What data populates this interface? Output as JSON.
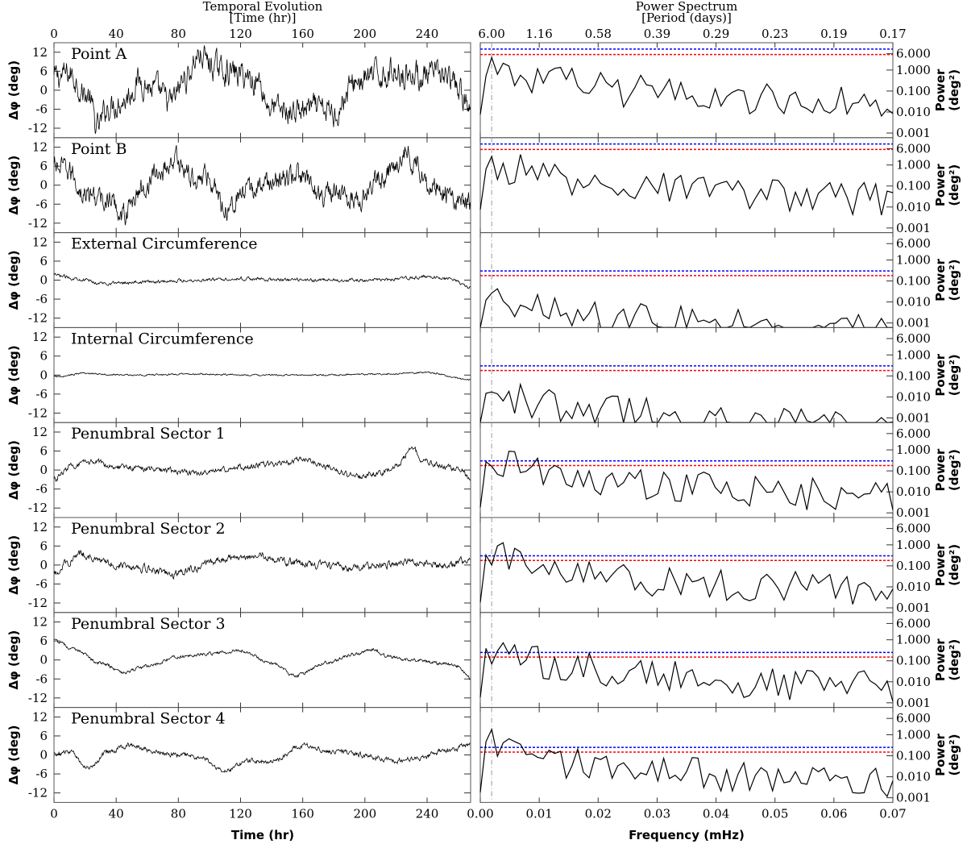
{
  "colors": {
    "blue_threshold": "#0000ff",
    "red_threshold": "#ff0000",
    "period_marker": "#999999"
  },
  "left": {
    "title": "Temporal Evolution",
    "subtitle": "[Time (hr)]",
    "xlabel": "Time (hr)",
    "ylabel": "Δφ (deg)",
    "xticks": [
      "0",
      "40",
      "80",
      "120",
      "160",
      "200",
      "240"
    ],
    "xtick_values": [
      0,
      40,
      80,
      120,
      160,
      200,
      240
    ],
    "xlim": [
      0,
      268
    ],
    "ylim": [
      -15,
      15
    ],
    "yticks": [
      "12",
      "6",
      "0",
      "-6",
      "-12"
    ],
    "ytick_values": [
      12,
      6,
      0,
      -6,
      -12
    ]
  },
  "right": {
    "title": "Power Spectrum",
    "subtitle": "[Period (days)]",
    "xlabel": "Frequency (mHz)",
    "ylabel_line1": "Power",
    "ylabel_line2": "(deg²)",
    "xticks": [
      "0.00",
      "0.01",
      "0.02",
      "0.03",
      "0.04",
      "0.05",
      "0.06",
      "0.07"
    ],
    "xtick_values": [
      0,
      0.01,
      0.02,
      0.03,
      0.04,
      0.05,
      0.06,
      0.07
    ],
    "top_ticks": [
      "6.00",
      "1.16",
      "0.58",
      "0.39",
      "0.29",
      "0.23",
      "0.19",
      "0.17"
    ],
    "top_tick_values": [
      0.00193,
      0.01,
      0.02,
      0.03,
      0.04,
      0.05,
      0.06,
      0.07
    ],
    "yticks": [
      "6.000",
      "1.000",
      "0.100",
      "0.010",
      "0.001"
    ],
    "ytick_values": [
      6,
      1,
      0.1,
      0.01,
      0.001
    ],
    "ylim": [
      0.0006,
      20
    ],
    "yscale": "log",
    "xlim": [
      0,
      0.07
    ],
    "period_marker_freq": 0.00193
  },
  "panels": [
    {
      "label": "Point A",
      "blue_level": 10.0,
      "red_level": 5.5,
      "amp": 6.5,
      "anchors": [
        [
          0,
          4
        ],
        [
          10,
          5
        ],
        [
          22,
          -2
        ],
        [
          28,
          -12
        ],
        [
          35,
          -5
        ],
        [
          45,
          -3
        ],
        [
          55,
          3
        ],
        [
          65,
          0
        ],
        [
          75,
          -4
        ],
        [
          85,
          4
        ],
        [
          93,
          11
        ],
        [
          105,
          7
        ],
        [
          120,
          5
        ],
        [
          132,
          3
        ],
        [
          138,
          -5
        ],
        [
          150,
          -7
        ],
        [
          165,
          -6
        ],
        [
          180,
          -7
        ],
        [
          195,
          3
        ],
        [
          210,
          5
        ],
        [
          220,
          6
        ],
        [
          232,
          5
        ],
        [
          240,
          4
        ],
        [
          250,
          5
        ],
        [
          258,
          1
        ],
        [
          268,
          -6
        ]
      ]
    },
    {
      "label": "Point B",
      "blue_level": 10.0,
      "red_level": 5.5,
      "amp": 5.5,
      "anchors": [
        [
          0,
          6
        ],
        [
          10,
          4
        ],
        [
          20,
          -3
        ],
        [
          35,
          -5
        ],
        [
          45,
          -9
        ],
        [
          55,
          -2
        ],
        [
          65,
          3
        ],
        [
          78,
          8
        ],
        [
          90,
          2
        ],
        [
          100,
          3
        ],
        [
          110,
          -7
        ],
        [
          120,
          -3
        ],
        [
          140,
          1
        ],
        [
          155,
          3
        ],
        [
          175,
          -3
        ],
        [
          195,
          -4
        ],
        [
          210,
          2
        ],
        [
          220,
          7
        ],
        [
          226,
          11
        ],
        [
          232,
          6
        ],
        [
          245,
          0
        ],
        [
          260,
          -5
        ],
        [
          268,
          -6
        ]
      ]
    },
    {
      "label": "External Circumference",
      "blue_level": 0.3,
      "red_level": 0.18,
      "amp": 0.8,
      "anchors": [
        [
          0,
          1.5
        ],
        [
          15,
          0.5
        ],
        [
          30,
          -1
        ],
        [
          60,
          -0.5
        ],
        [
          90,
          0
        ],
        [
          120,
          0.5
        ],
        [
          150,
          0
        ],
        [
          180,
          0
        ],
        [
          210,
          0
        ],
        [
          225,
          0.5
        ],
        [
          240,
          1
        ],
        [
          255,
          0.5
        ],
        [
          268,
          -2.5
        ]
      ]
    },
    {
      "label": "Internal Circumference",
      "blue_level": 0.3,
      "red_level": 0.18,
      "amp": 0.4,
      "anchors": [
        [
          0,
          -0.5
        ],
        [
          20,
          0.5
        ],
        [
          50,
          0
        ],
        [
          90,
          0.3
        ],
        [
          130,
          0
        ],
        [
          170,
          0
        ],
        [
          210,
          0.3
        ],
        [
          240,
          0.8
        ],
        [
          268,
          -1.5
        ]
      ]
    },
    {
      "label": "Penumbral Sector 1",
      "blue_level": 0.3,
      "red_level": 0.18,
      "amp": 1.4,
      "anchors": [
        [
          0,
          -3
        ],
        [
          10,
          1
        ],
        [
          25,
          2.5
        ],
        [
          45,
          1
        ],
        [
          70,
          0
        ],
        [
          95,
          -1
        ],
        [
          120,
          1
        ],
        [
          145,
          2
        ],
        [
          160,
          3.5
        ],
        [
          175,
          1
        ],
        [
          195,
          -2
        ],
        [
          210,
          -1
        ],
        [
          222,
          2
        ],
        [
          230,
          7
        ],
        [
          238,
          3
        ],
        [
          250,
          1
        ],
        [
          262,
          0
        ],
        [
          268,
          -3
        ]
      ]
    },
    {
      "label": "Penumbral Sector 2",
      "blue_level": 0.3,
      "red_level": 0.18,
      "amp": 1.8,
      "anchors": [
        [
          0,
          -3
        ],
        [
          8,
          1
        ],
        [
          18,
          3.5
        ],
        [
          30,
          1
        ],
        [
          45,
          0
        ],
        [
          60,
          -1
        ],
        [
          75,
          -3
        ],
        [
          90,
          -1
        ],
        [
          110,
          2
        ],
        [
          130,
          3
        ],
        [
          150,
          1
        ],
        [
          170,
          0
        ],
        [
          190,
          -1
        ],
        [
          210,
          0
        ],
        [
          230,
          1
        ],
        [
          250,
          0
        ],
        [
          268,
          2
        ]
      ]
    },
    {
      "label": "Penumbral Sector 3",
      "blue_level": 0.25,
      "red_level": 0.15,
      "amp": 0.8,
      "anchors": [
        [
          0,
          6
        ],
        [
          15,
          3
        ],
        [
          30,
          -1
        ],
        [
          45,
          -4
        ],
        [
          60,
          -2
        ],
        [
          80,
          1
        ],
        [
          100,
          2
        ],
        [
          120,
          3
        ],
        [
          140,
          -1
        ],
        [
          155,
          -5
        ],
        [
          175,
          -1
        ],
        [
          195,
          2
        ],
        [
          205,
          3.5
        ],
        [
          215,
          1
        ],
        [
          230,
          0
        ],
        [
          250,
          -1
        ],
        [
          260,
          -2
        ],
        [
          268,
          -6
        ]
      ]
    },
    {
      "label": "Penumbral Sector 4",
      "blue_level": 0.25,
      "red_level": 0.15,
      "amp": 1.2,
      "anchors": [
        [
          0,
          0
        ],
        [
          10,
          1
        ],
        [
          22,
          -4
        ],
        [
          35,
          1
        ],
        [
          50,
          3
        ],
        [
          65,
          1
        ],
        [
          80,
          0
        ],
        [
          95,
          -1
        ],
        [
          110,
          -5
        ],
        [
          125,
          -2
        ],
        [
          140,
          -2
        ],
        [
          160,
          3
        ],
        [
          180,
          1
        ],
        [
          200,
          0
        ],
        [
          220,
          -2
        ],
        [
          235,
          -1
        ],
        [
          250,
          1
        ],
        [
          268,
          3
        ]
      ]
    }
  ]
}
